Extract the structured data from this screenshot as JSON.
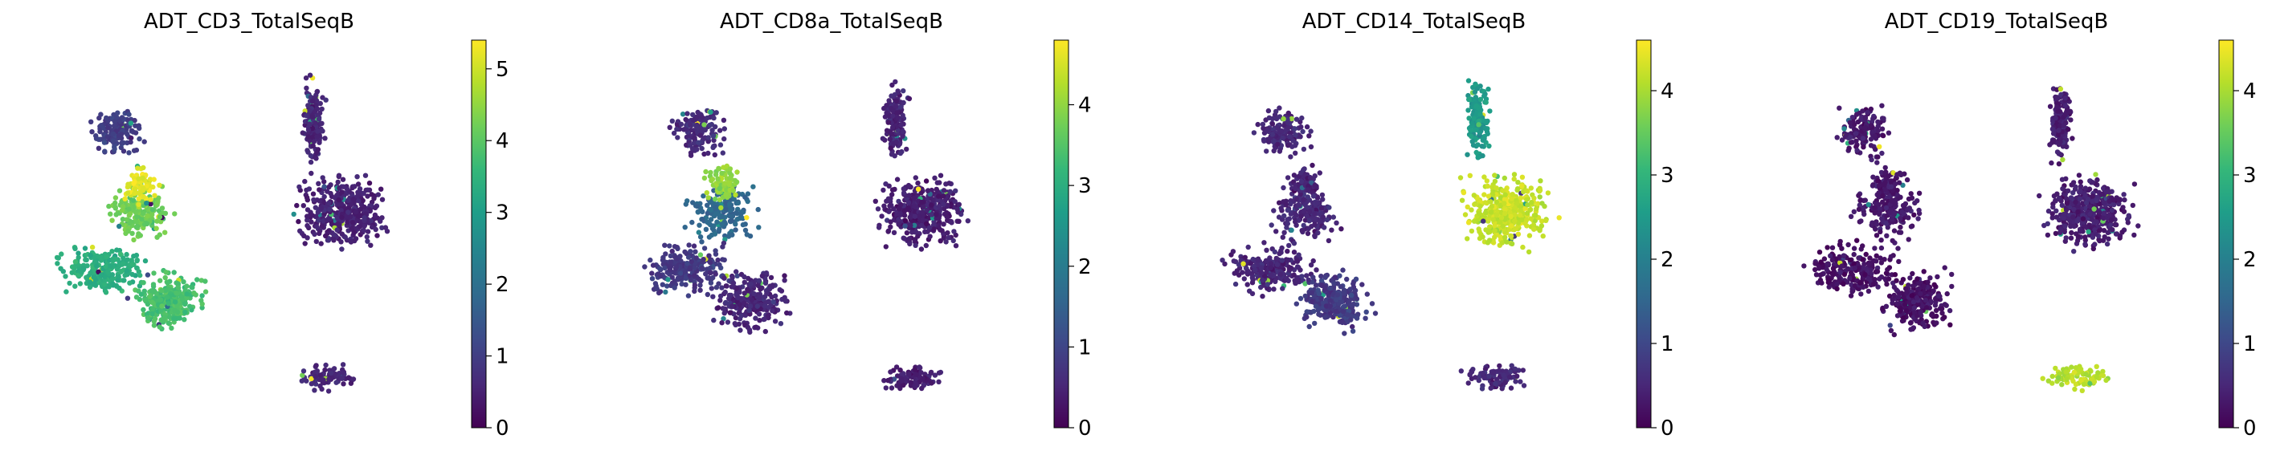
{
  "colormap": [
    "#440154",
    "#482878",
    "#3e4989",
    "#31688e",
    "#26828e",
    "#1f9e89",
    "#35b779",
    "#6ece58",
    "#b5de2b",
    "#fde725"
  ],
  "chart_data": [
    {
      "type": "scatter",
      "title": "ADT_CD3_TotalSeqB",
      "colorbar": {
        "min": 0,
        "max": 5.4,
        "ticks": [
          0,
          1,
          2,
          3,
          4,
          5
        ]
      },
      "cluster_levels": {
        "left_top": 1.0,
        "left_mid": 4.2,
        "left_wedge": 5.2,
        "left_lower": 3.4,
        "left_bottom_blob": 3.8,
        "right_arm": 0.6,
        "right_big": 0.5,
        "bottom_small": 0.6
      }
    },
    {
      "type": "scatter",
      "title": "ADT_CD8a_TotalSeqB",
      "colorbar": {
        "min": 0,
        "max": 4.8,
        "ticks": [
          0,
          1,
          2,
          3,
          4
        ]
      },
      "cluster_levels": {
        "left_top": 0.6,
        "left_mid": 1.6,
        "left_wedge": 4.0,
        "left_lower": 0.8,
        "left_bottom_blob": 0.5,
        "right_arm": 0.5,
        "right_big": 0.4,
        "bottom_small": 0.4
      }
    },
    {
      "type": "scatter",
      "title": "ADT_CD14_TotalSeqB",
      "colorbar": {
        "min": 0,
        "max": 4.6,
        "ticks": [
          0,
          1,
          2,
          3,
          4
        ]
      },
      "cluster_levels": {
        "left_top": 0.5,
        "left_mid": 0.5,
        "left_wedge": 0.5,
        "left_lower": 0.5,
        "left_bottom_blob": 0.8,
        "right_arm": 2.5,
        "right_big": 4.2,
        "bottom_small": 0.5
      }
    },
    {
      "type": "scatter",
      "title": "ADT_CD19_TotalSeqB",
      "colorbar": {
        "min": 0,
        "max": 4.6,
        "ticks": [
          0,
          1,
          2,
          3,
          4
        ]
      },
      "cluster_levels": {
        "left_top": 0.3,
        "left_mid": 0.3,
        "left_wedge": 0.3,
        "left_lower": 0.2,
        "left_bottom_blob": 0.2,
        "right_arm": 0.4,
        "right_big": 0.4,
        "bottom_small": 4.1
      }
    }
  ]
}
